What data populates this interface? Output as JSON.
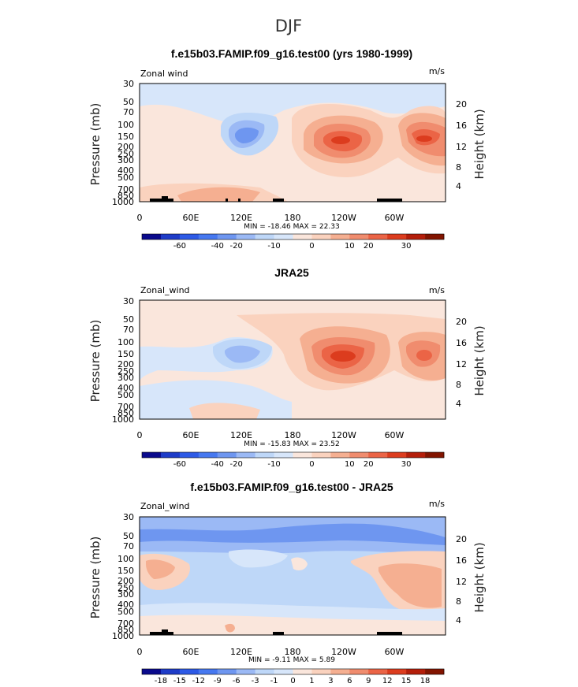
{
  "figure_title": "DJF",
  "chart_data": [
    {
      "type": "heatmap",
      "title": "f.e15b03.FAMIP.f09_g16.test00 (yrs 1980-1999)",
      "left_label": "Zonal wind",
      "right_label": "m/s",
      "ylabel": "Pressure (mb)",
      "y2label": "Height (km)",
      "yticks": [
        "30",
        "50",
        "70",
        "100",
        "150",
        "200",
        "250",
        "300",
        "400",
        "500",
        "700",
        "850",
        "1000"
      ],
      "y2ticks": [
        "20",
        "16",
        "12",
        "8",
        "4"
      ],
      "xticks": [
        "0",
        "60E",
        "120E",
        "180",
        "120W",
        "60W"
      ],
      "minmax": "MIN = -18.46   MAX =  22.33",
      "min": -18.46,
      "max": 22.33,
      "colorbar": {
        "levels": [
          "-60",
          "-40",
          "-20",
          "-10",
          "0",
          "10",
          "20",
          "30"
        ],
        "colors": [
          "#0a0a8c",
          "#1e3cc8",
          "#2d5ae6",
          "#4678f0",
          "#6e96f0",
          "#9bb9f5",
          "#bed7f8",
          "#d7e6fa",
          "#fae6dc",
          "#fad2be",
          "#f5af91",
          "#f08c6e",
          "#eb6446",
          "#dc3c1e",
          "#b41e0a",
          "#821400"
        ]
      },
      "features": [
        {
          "shape": "jet",
          "lon": 155,
          "level": 150,
          "level_idx": 7,
          "label": "N hemisphere jet Pacific"
        },
        {
          "shape": "jet",
          "lon": 245,
          "level": 150,
          "level_idx": 7,
          "label": "Atlantic jet"
        },
        {
          "shape": "easterly",
          "lon": 100,
          "level": 150,
          "level_idx": 3,
          "label": "easterly core"
        }
      ]
    },
    {
      "type": "heatmap",
      "title": "JRA25",
      "left_label": "Zonal_wind",
      "right_label": "m/s",
      "ylabel": "Pressure (mb)",
      "y2label": "Height (km)",
      "yticks": [
        "30",
        "50",
        "70",
        "100",
        "150",
        "200",
        "250",
        "300",
        "400",
        "500",
        "700",
        "850",
        "1000"
      ],
      "y2ticks": [
        "20",
        "16",
        "12",
        "8",
        "4"
      ],
      "xticks": [
        "0",
        "60E",
        "120E",
        "180",
        "120W",
        "60W"
      ],
      "minmax": "MIN = -15.83   MAX =  23.52",
      "min": -15.83,
      "max": 23.52,
      "colorbar": {
        "levels": [
          "-60",
          "-40",
          "-20",
          "-10",
          "0",
          "10",
          "20",
          "30"
        ],
        "colors": [
          "#0a0a8c",
          "#1e3cc8",
          "#2d5ae6",
          "#4678f0",
          "#6e96f0",
          "#9bb9f5",
          "#bed7f8",
          "#d7e6fa",
          "#fae6dc",
          "#fad2be",
          "#f5af91",
          "#f08c6e",
          "#eb6446",
          "#dc3c1e",
          "#b41e0a",
          "#821400"
        ]
      }
    },
    {
      "type": "heatmap",
      "title": "f.e15b03.FAMIP.f09_g16.test00 - JRA25",
      "left_label": "Zonal_wind",
      "right_label": "m/s",
      "ylabel": "Pressure (mb)",
      "y2label": "Height (km)",
      "yticks": [
        "30",
        "50",
        "70",
        "100",
        "150",
        "200",
        "250",
        "300",
        "400",
        "500",
        "700",
        "850",
        "1000"
      ],
      "y2ticks": [
        "20",
        "16",
        "12",
        "8",
        "4"
      ],
      "xticks": [
        "0",
        "60E",
        "120E",
        "180",
        "120W",
        "60W"
      ],
      "minmax": "MIN = -9.11   MAX =   5.89",
      "min": -9.11,
      "max": 5.89,
      "colorbar": {
        "levels": [
          "-18",
          "-15",
          "-12",
          "-9",
          "-6",
          "-3",
          "-1",
          "0",
          "1",
          "3",
          "6",
          "9",
          "12",
          "15",
          "18"
        ],
        "colors": [
          "#0a0a8c",
          "#1e3cc8",
          "#2d5ae6",
          "#4678f0",
          "#6e96f0",
          "#9bb9f5",
          "#bed7f8",
          "#d7e6fa",
          "#fae6dc",
          "#fad2be",
          "#f5af91",
          "#f08c6e",
          "#eb6446",
          "#dc3c1e",
          "#b41e0a",
          "#821400"
        ]
      }
    }
  ]
}
